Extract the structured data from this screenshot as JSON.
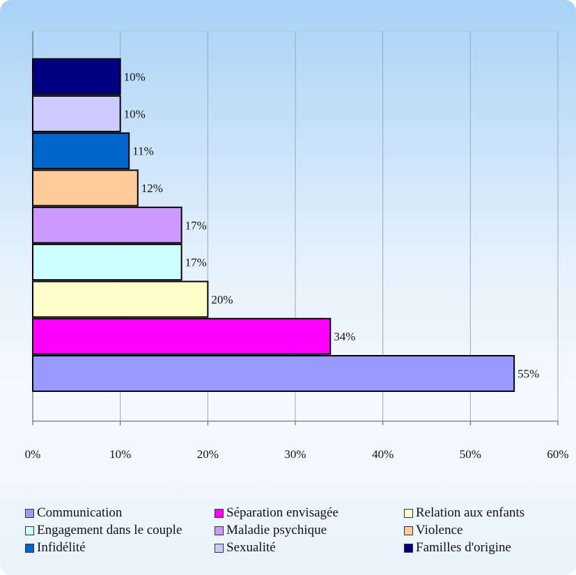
{
  "chart_data": {
    "type": "bar",
    "orientation": "horizontal",
    "categories": [
      "Communication",
      "Séparation envisagée",
      "Relation aux enfants",
      "Engagement dans le couple",
      "Maladie psychique",
      "Violence",
      "Infidélité",
      "Sexualité",
      "Familles d'origine"
    ],
    "values": [
      55,
      34,
      20,
      17,
      17,
      12,
      11,
      10,
      10
    ],
    "data_labels": [
      "55%",
      "34%",
      "20%",
      "17%",
      "17%",
      "12%",
      "11%",
      "10%",
      "10%"
    ],
    "colors": [
      "#9999ff",
      "#ff00ff",
      "#ffffcc",
      "#ccffff",
      "#cc99ff",
      "#ffcc99",
      "#0066cc",
      "#ccccff",
      "#000080"
    ],
    "x_ticks": [
      "0%",
      "10%",
      "20%",
      "30%",
      "40%",
      "50%",
      "60%"
    ],
    "xlim": [
      0,
      60
    ],
    "grid": true,
    "legend_position": "bottom"
  }
}
